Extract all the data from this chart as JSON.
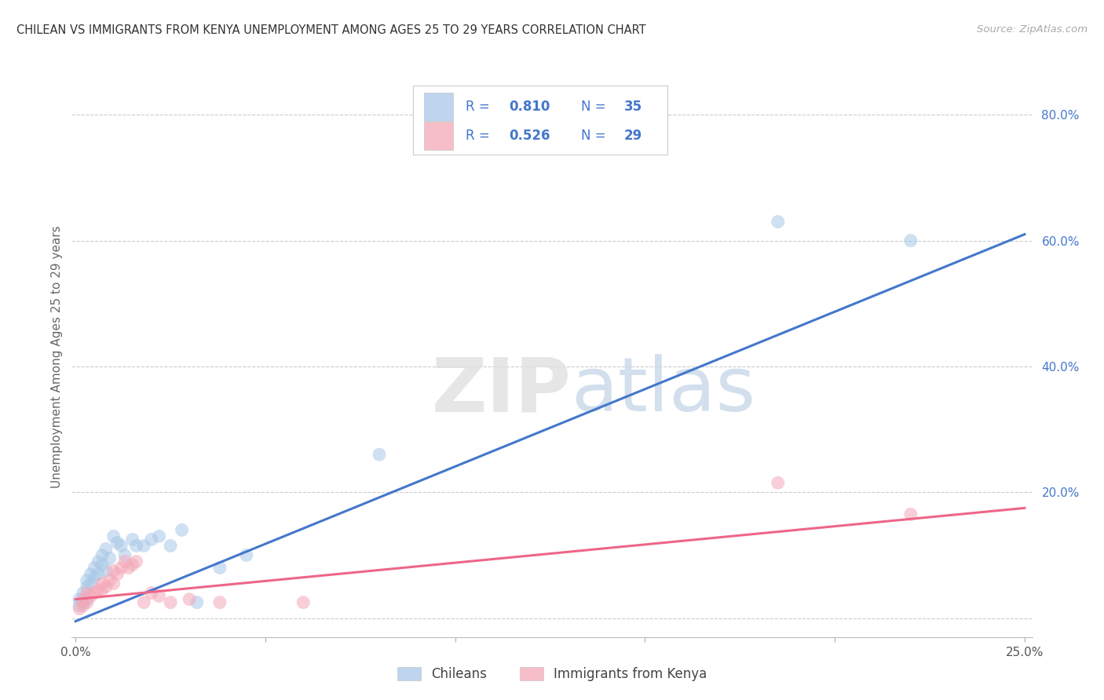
{
  "title": "CHILEAN VS IMMIGRANTS FROM KENYA UNEMPLOYMENT AMONG AGES 25 TO 29 YEARS CORRELATION CHART",
  "source": "Source: ZipAtlas.com",
  "ylabel": "Unemployment Among Ages 25 to 29 years",
  "xlim": [
    -0.001,
    0.252
  ],
  "ylim": [
    -0.03,
    0.86
  ],
  "yticks": [
    0.0,
    0.2,
    0.4,
    0.6,
    0.8
  ],
  "xticks": [
    0.0,
    0.05,
    0.1,
    0.15,
    0.2,
    0.25
  ],
  "xtick_labels": [
    "0.0%",
    "",
    "",
    "",
    "",
    "25.0%"
  ],
  "ytick_labels": [
    "",
    "20.0%",
    "40.0%",
    "60.0%",
    "80.0%"
  ],
  "blue_scatter_color": "#A8C8E8",
  "pink_scatter_color": "#F4A8B8",
  "blue_line_color": "#4477CC",
  "pink_line_color": "#EE6688",
  "legend_text_color": "#4477CC",
  "R_blue": "0.810",
  "N_blue": "35",
  "R_pink": "0.526",
  "N_pink": "29",
  "watermark_zip": "ZIP",
  "watermark_atlas": "atlas",
  "legend_labels": [
    "Chileans",
    "Immigrants from Kenya"
  ],
  "blue_line_x0": 0.0,
  "blue_line_y0": -0.005,
  "blue_line_x1": 0.25,
  "blue_line_y1": 0.61,
  "pink_line_x0": 0.0,
  "pink_line_y0": 0.03,
  "pink_line_x1": 0.25,
  "pink_line_y1": 0.175,
  "blue_scatter_x": [
    0.001,
    0.001,
    0.002,
    0.002,
    0.003,
    0.003,
    0.003,
    0.004,
    0.004,
    0.005,
    0.005,
    0.006,
    0.006,
    0.007,
    0.007,
    0.008,
    0.008,
    0.009,
    0.01,
    0.011,
    0.012,
    0.013,
    0.015,
    0.016,
    0.018,
    0.02,
    0.022,
    0.025,
    0.028,
    0.032,
    0.038,
    0.045,
    0.08,
    0.185,
    0.22
  ],
  "blue_scatter_y": [
    0.02,
    0.03,
    0.025,
    0.04,
    0.03,
    0.05,
    0.06,
    0.055,
    0.07,
    0.065,
    0.08,
    0.07,
    0.09,
    0.085,
    0.1,
    0.075,
    0.11,
    0.095,
    0.13,
    0.12,
    0.115,
    0.1,
    0.125,
    0.115,
    0.115,
    0.125,
    0.13,
    0.115,
    0.14,
    0.025,
    0.08,
    0.1,
    0.26,
    0.63,
    0.6
  ],
  "pink_scatter_x": [
    0.001,
    0.002,
    0.002,
    0.003,
    0.003,
    0.004,
    0.005,
    0.006,
    0.007,
    0.007,
    0.008,
    0.009,
    0.01,
    0.01,
    0.011,
    0.012,
    0.013,
    0.014,
    0.015,
    0.016,
    0.018,
    0.02,
    0.022,
    0.025,
    0.03,
    0.038,
    0.06,
    0.185,
    0.22
  ],
  "pink_scatter_y": [
    0.015,
    0.02,
    0.03,
    0.025,
    0.04,
    0.035,
    0.04,
    0.045,
    0.045,
    0.055,
    0.05,
    0.06,
    0.055,
    0.075,
    0.07,
    0.08,
    0.09,
    0.08,
    0.085,
    0.09,
    0.025,
    0.04,
    0.035,
    0.025,
    0.03,
    0.025,
    0.025,
    0.215,
    0.165
  ]
}
